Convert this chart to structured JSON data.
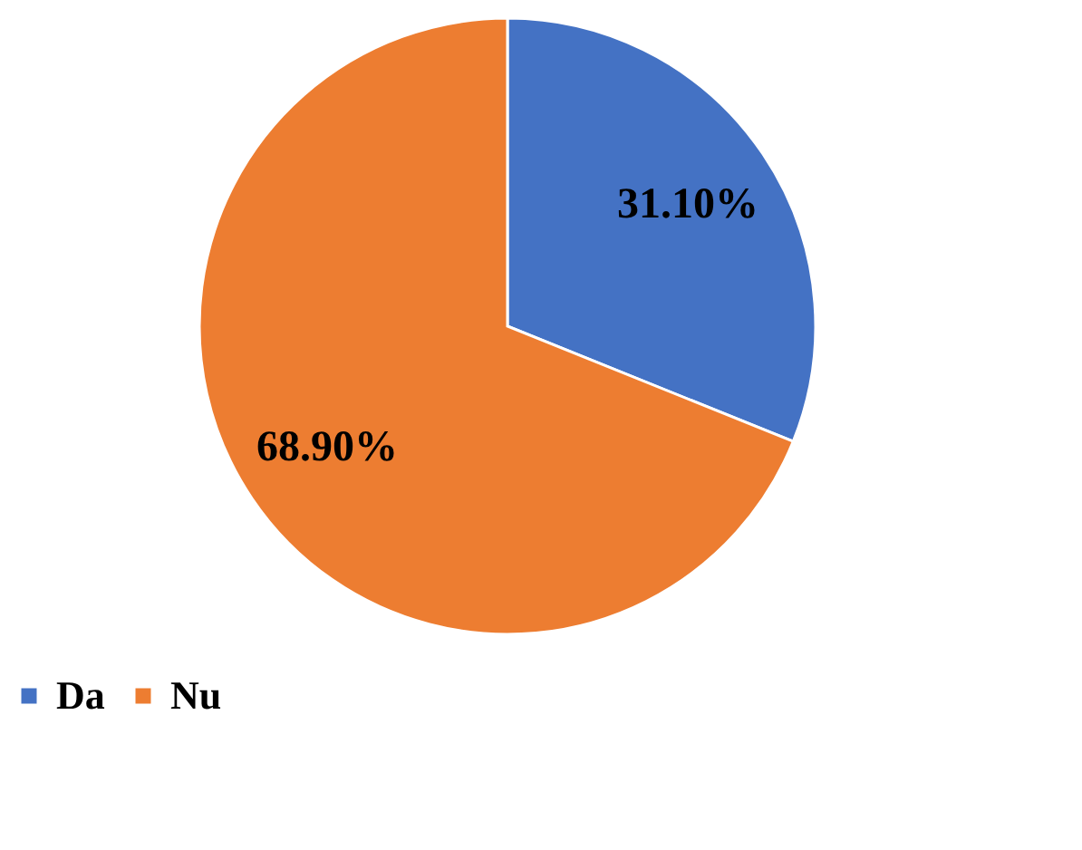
{
  "chart_data": {
    "type": "pie",
    "categories": [
      "Da",
      "Nu"
    ],
    "values": [
      31.1,
      68.9
    ],
    "colors": [
      "#4472c4",
      "#ed7d31"
    ],
    "value_labels": [
      "31.10%",
      "68.90%"
    ],
    "legend": "bottom"
  }
}
